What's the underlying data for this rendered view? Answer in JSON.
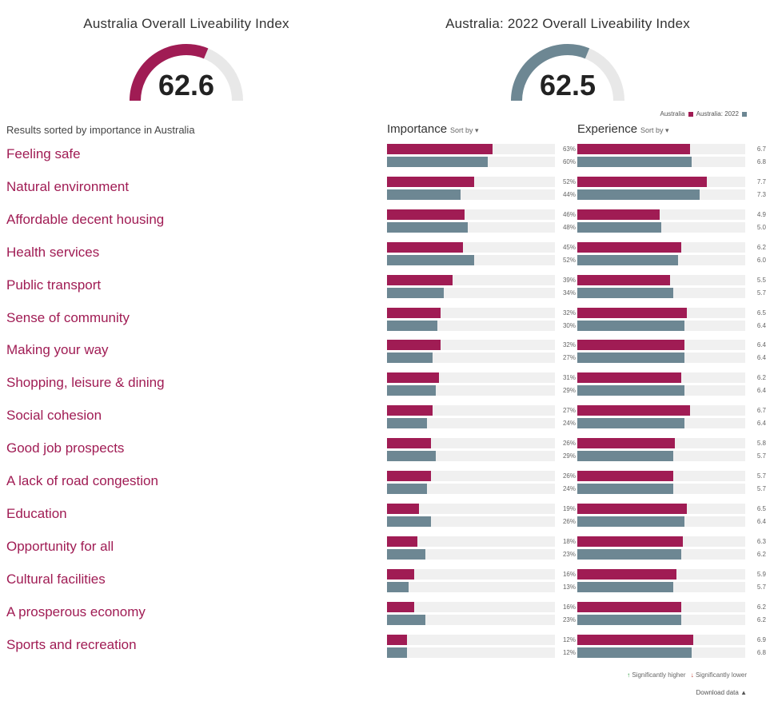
{
  "gauges": [
    {
      "title": "Australia Overall Liveability Index",
      "value": "62.6",
      "fraction": 0.626,
      "color": "#a01c54"
    },
    {
      "title": "Australia: 2022 Overall Liveability Index",
      "value": "62.5",
      "fraction": 0.625,
      "color": "#6d8793"
    }
  ],
  "legend": {
    "series_a": "Australia",
    "series_b": "Australia: 2022",
    "color_a": "#a01c54",
    "color_b": "#6d8793"
  },
  "results_note": "Results sorted by importance in Australia",
  "columns": {
    "importance": {
      "title": "Importance",
      "sort": "Sort by ▾"
    },
    "experience": {
      "title": "Experience",
      "sort": "Sort by ▾"
    }
  },
  "footer": {
    "higher": "Significantly higher",
    "lower": "Significantly lower",
    "download": "Download data"
  },
  "chart_data": {
    "type": "bar",
    "categories": [
      "Feeling safe",
      "Natural environment",
      "Affordable decent housing",
      "Health services",
      "Public transport",
      "Sense of community",
      "Making your way",
      "Shopping, leisure & dining",
      "Social cohesion",
      "Good job prospects",
      "A lack of road congestion",
      "Education",
      "Opportunity for all",
      "Cultural facilities",
      "A prosperous economy",
      "Sports and recreation"
    ],
    "importance": {
      "unit": "%",
      "xlim": [
        0,
        100
      ],
      "series": [
        {
          "name": "Australia",
          "values": [
            63,
            52,
            46,
            45,
            39,
            32,
            32,
            31,
            27,
            26,
            26,
            19,
            18,
            16,
            16,
            12
          ]
        },
        {
          "name": "Australia: 2022",
          "values": [
            60,
            44,
            48,
            52,
            34,
            30,
            27,
            29,
            24,
            29,
            24,
            26,
            23,
            13,
            23,
            12
          ]
        }
      ]
    },
    "experience": {
      "unit": "",
      "xlim": [
        0,
        10
      ],
      "series": [
        {
          "name": "Australia",
          "values": [
            6.7,
            7.7,
            4.9,
            6.2,
            5.5,
            6.5,
            6.4,
            6.2,
            6.7,
            5.8,
            5.7,
            6.5,
            6.3,
            5.9,
            6.2,
            6.9
          ]
        },
        {
          "name": "Australia: 2022",
          "values": [
            6.8,
            7.3,
            5.0,
            6.0,
            5.7,
            6.4,
            6.4,
            6.4,
            6.4,
            5.7,
            5.7,
            6.4,
            6.2,
            5.7,
            6.2,
            6.8
          ]
        }
      ]
    }
  }
}
